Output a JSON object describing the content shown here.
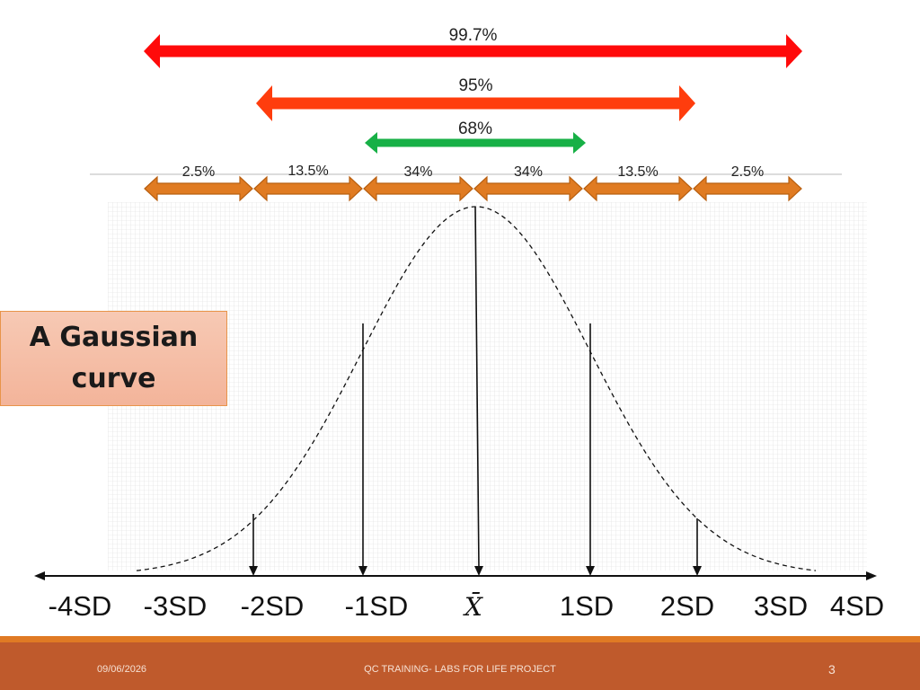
{
  "slide": {
    "callout": "A Gaussian\ncurve",
    "footer": {
      "date": "09/06/2026",
      "title": "QC TRAINING- LABS FOR LIFE PROJECT",
      "page": "3"
    }
  },
  "diagram": {
    "coverage": [
      {
        "label": "99.7%",
        "color": "#ff0a0a"
      },
      {
        "label": "95%",
        "color": "#ff3d0d"
      },
      {
        "label": "68%",
        "color": "#17b046"
      }
    ],
    "segments": [
      "2.5%",
      "13.5%",
      "34%",
      "34%",
      "13.5%",
      "2.5%"
    ],
    "segment_color": "#e07b22",
    "segment_border": "#b85f10",
    "axis_labels": [
      "-4SD",
      "-3SD",
      "-2SD",
      "-1SD",
      "X̄",
      "1SD",
      "2SD",
      "3SD",
      "4SD"
    ]
  }
}
